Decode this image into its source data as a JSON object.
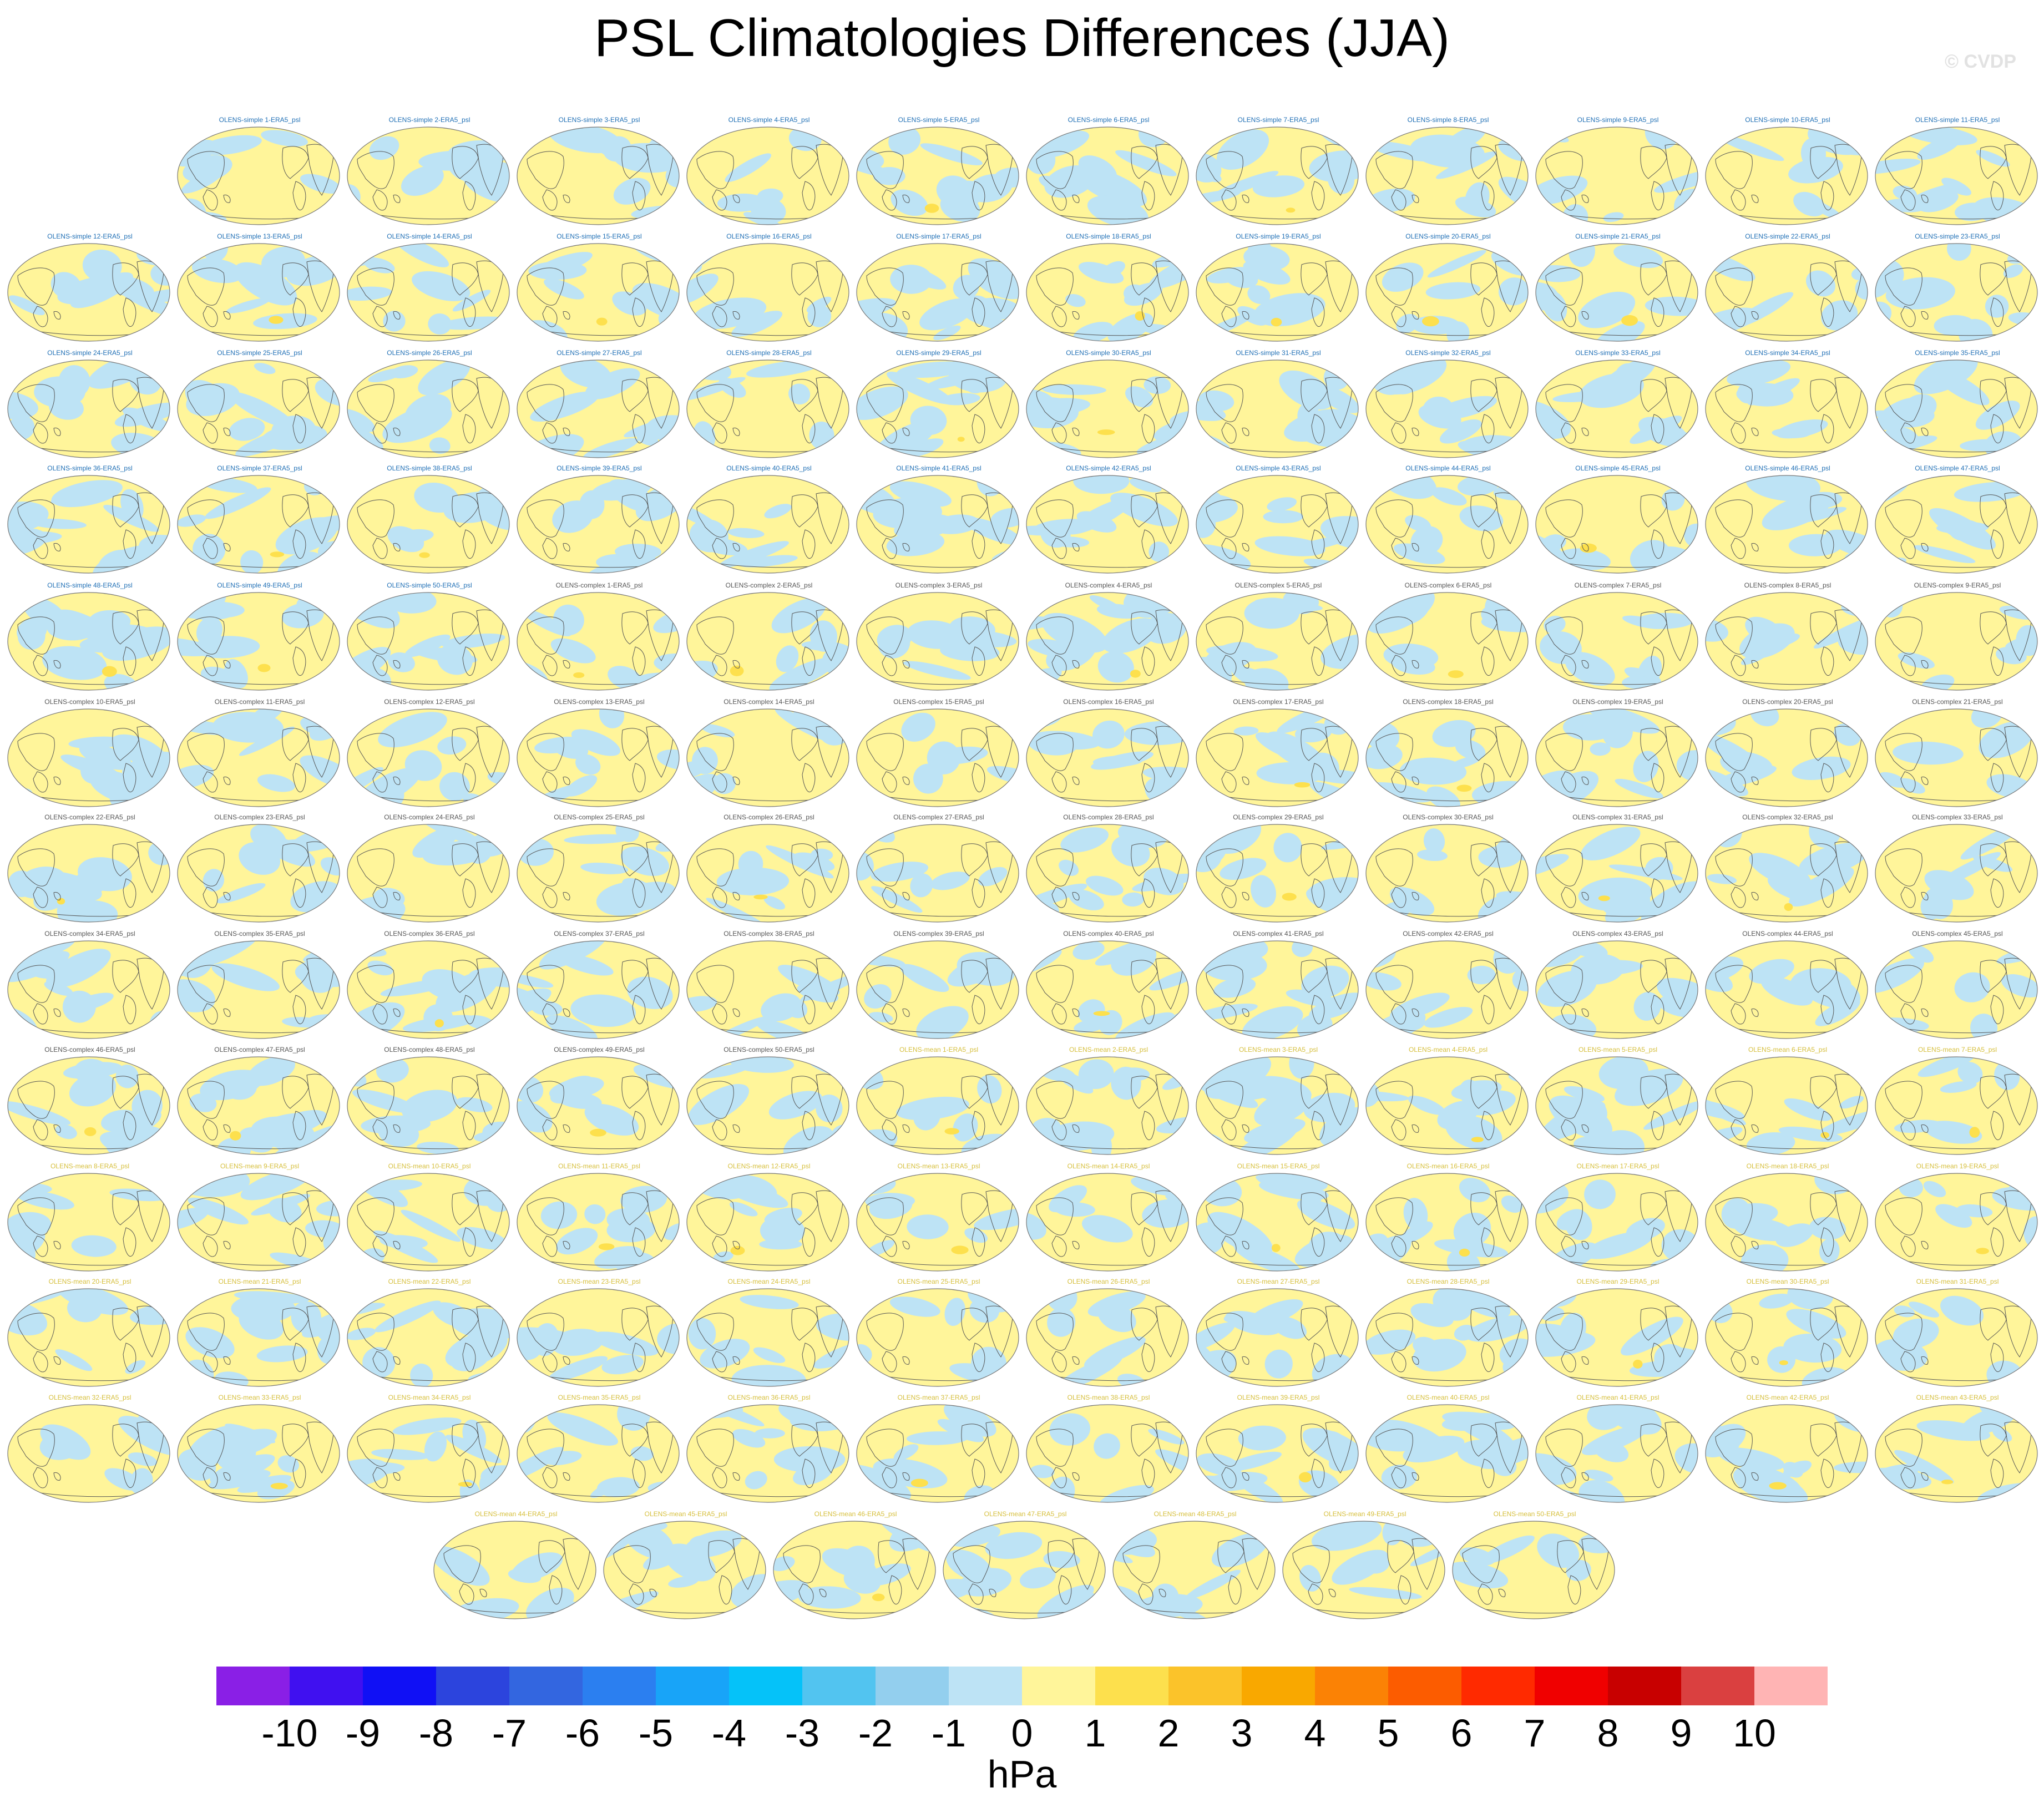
{
  "title": "PSL Climatologies Differences (JJA)",
  "watermark": "© CVDP",
  "label_colors": {
    "simple": "#1f6fb5",
    "complex": "#555555",
    "mean": "#d6bf3c"
  },
  "colors": {
    "positive": "#fff59a",
    "negative": "#bde3f5",
    "strong_positive": "#fde04d",
    "strong_negative": "#7fc6ee",
    "coast": "#555555",
    "outline": "#777777"
  },
  "chart_data": {
    "type": "heatmap",
    "title": "PSL Climatologies Differences (JJA)",
    "projection": "Robinson (global map panels)",
    "panels": [
      "OLENS-simple 1-ERA5_psl",
      "OLENS-simple 2-ERA5_psl",
      "OLENS-simple 3-ERA5_psl",
      "OLENS-simple 4-ERA5_psl",
      "OLENS-simple 5-ERA5_psl",
      "OLENS-simple 6-ERA5_psl",
      "OLENS-simple 7-ERA5_psl",
      "OLENS-simple 8-ERA5_psl",
      "OLENS-simple 9-ERA5_psl",
      "OLENS-simple 10-ERA5_psl",
      "OLENS-simple 11-ERA5_psl",
      "OLENS-simple 12-ERA5_psl",
      "OLENS-simple 13-ERA5_psl",
      "OLENS-simple 14-ERA5_psl",
      "OLENS-simple 15-ERA5_psl",
      "OLENS-simple 16-ERA5_psl",
      "OLENS-simple 17-ERA5_psl",
      "OLENS-simple 18-ERA5_psl",
      "OLENS-simple 19-ERA5_psl",
      "OLENS-simple 20-ERA5_psl",
      "OLENS-simple 21-ERA5_psl",
      "OLENS-simple 22-ERA5_psl",
      "OLENS-simple 23-ERA5_psl",
      "OLENS-simple 24-ERA5_psl",
      "OLENS-simple 25-ERA5_psl",
      "OLENS-simple 26-ERA5_psl",
      "OLENS-simple 27-ERA5_psl",
      "OLENS-simple 28-ERA5_psl",
      "OLENS-simple 29-ERA5_psl",
      "OLENS-simple 30-ERA5_psl",
      "OLENS-simple 31-ERA5_psl",
      "OLENS-simple 32-ERA5_psl",
      "OLENS-simple 33-ERA5_psl",
      "OLENS-simple 34-ERA5_psl",
      "OLENS-simple 35-ERA5_psl",
      "OLENS-simple 36-ERA5_psl",
      "OLENS-simple 37-ERA5_psl",
      "OLENS-simple 38-ERA5_psl",
      "OLENS-simple 39-ERA5_psl",
      "OLENS-simple 40-ERA5_psl",
      "OLENS-simple 41-ERA5_psl",
      "OLENS-simple 42-ERA5_psl",
      "OLENS-simple 43-ERA5_psl",
      "OLENS-simple 44-ERA5_psl",
      "OLENS-simple 45-ERA5_psl",
      "OLENS-simple 46-ERA5_psl",
      "OLENS-simple 47-ERA5_psl",
      "OLENS-simple 48-ERA5_psl",
      "OLENS-simple 49-ERA5_psl",
      "OLENS-simple 50-ERA5_psl",
      "OLENS-complex 1-ERA5_psl",
      "OLENS-complex 2-ERA5_psl",
      "OLENS-complex 3-ERA5_psl",
      "OLENS-complex 4-ERA5_psl",
      "OLENS-complex 5-ERA5_psl",
      "OLENS-complex 6-ERA5_psl",
      "OLENS-complex 7-ERA5_psl",
      "OLENS-complex 8-ERA5_psl",
      "OLENS-complex 9-ERA5_psl",
      "OLENS-complex 10-ERA5_psl",
      "OLENS-complex 11-ERA5_psl",
      "OLENS-complex 12-ERA5_psl",
      "OLENS-complex 13-ERA5_psl",
      "OLENS-complex 14-ERA5_psl",
      "OLENS-complex 15-ERA5_psl",
      "OLENS-complex 16-ERA5_psl",
      "OLENS-complex 17-ERA5_psl",
      "OLENS-complex 18-ERA5_psl",
      "OLENS-complex 19-ERA5_psl",
      "OLENS-complex 20-ERA5_psl",
      "OLENS-complex 21-ERA5_psl",
      "OLENS-complex 22-ERA5_psl",
      "OLENS-complex 23-ERA5_psl",
      "OLENS-complex 24-ERA5_psl",
      "OLENS-complex 25-ERA5_psl",
      "OLENS-complex 26-ERA5_psl",
      "OLENS-complex 27-ERA5_psl",
      "OLENS-complex 28-ERA5_psl",
      "OLENS-complex 29-ERA5_psl",
      "OLENS-complex 30-ERA5_psl",
      "OLENS-complex 31-ERA5_psl",
      "OLENS-complex 32-ERA5_psl",
      "OLENS-complex 33-ERA5_psl",
      "OLENS-complex 34-ERA5_psl",
      "OLENS-complex 35-ERA5_psl",
      "OLENS-complex 36-ERA5_psl",
      "OLENS-complex 37-ERA5_psl",
      "OLENS-complex 38-ERA5_psl",
      "OLENS-complex 39-ERA5_psl",
      "OLENS-complex 40-ERA5_psl",
      "OLENS-complex 41-ERA5_psl",
      "OLENS-complex 42-ERA5_psl",
      "OLENS-complex 43-ERA5_psl",
      "OLENS-complex 44-ERA5_psl",
      "OLENS-complex 45-ERA5_psl",
      "OLENS-complex 46-ERA5_psl",
      "OLENS-complex 47-ERA5_psl",
      "OLENS-complex 48-ERA5_psl",
      "OLENS-complex 49-ERA5_psl",
      "OLENS-complex 50-ERA5_psl",
      "OLENS-mean 1-ERA5_psl",
      "OLENS-mean 2-ERA5_psl",
      "OLENS-mean 3-ERA5_psl",
      "OLENS-mean 4-ERA5_psl",
      "OLENS-mean 5-ERA5_psl",
      "OLENS-mean 6-ERA5_psl",
      "OLENS-mean 7-ERA5_psl",
      "OLENS-mean 8-ERA5_psl",
      "OLENS-mean 9-ERA5_psl",
      "OLENS-mean 10-ERA5_psl",
      "OLENS-mean 11-ERA5_psl",
      "OLENS-mean 12-ERA5_psl",
      "OLENS-mean 13-ERA5_psl",
      "OLENS-mean 14-ERA5_psl",
      "OLENS-mean 15-ERA5_psl",
      "OLENS-mean 16-ERA5_psl",
      "OLENS-mean 17-ERA5_psl",
      "OLENS-mean 18-ERA5_psl",
      "OLENS-mean 19-ERA5_psl",
      "OLENS-mean 20-ERA5_psl",
      "OLENS-mean 21-ERA5_psl",
      "OLENS-mean 22-ERA5_psl",
      "OLENS-mean 23-ERA5_psl",
      "OLENS-mean 24-ERA5_psl",
      "OLENS-mean 25-ERA5_psl",
      "OLENS-mean 26-ERA5_psl",
      "OLENS-mean 27-ERA5_psl",
      "OLENS-mean 28-ERA5_psl",
      "OLENS-mean 29-ERA5_psl",
      "OLENS-mean 30-ERA5_psl",
      "OLENS-mean 31-ERA5_psl",
      "OLENS-mean 32-ERA5_psl",
      "OLENS-mean 33-ERA5_psl",
      "OLENS-mean 34-ERA5_psl",
      "OLENS-mean 35-ERA5_psl",
      "OLENS-mean 36-ERA5_psl",
      "OLENS-mean 37-ERA5_psl",
      "OLENS-mean 38-ERA5_psl",
      "OLENS-mean 39-ERA5_psl",
      "OLENS-mean 40-ERA5_psl",
      "OLENS-mean 41-ERA5_psl",
      "OLENS-mean 42-ERA5_psl",
      "OLENS-mean 43-ERA5_psl",
      "OLENS-mean 44-ERA5_psl",
      "OLENS-mean 45-ERA5_psl",
      "OLENS-mean 46-ERA5_psl",
      "OLENS-mean 47-ERA5_psl",
      "OLENS-mean 48-ERA5_psl",
      "OLENS-mean 49-ERA5_psl",
      "OLENS-mean 50-ERA5_psl"
    ],
    "colorbar": {
      "units": "hPa",
      "tick_labels": [
        "-10",
        "-9",
        "-8",
        "-7",
        "-6",
        "-5",
        "-4",
        "-3",
        "-2",
        "-1",
        "0",
        "1",
        "2",
        "3",
        "4",
        "5",
        "6",
        "7",
        "8",
        "9",
        "10"
      ],
      "colors": [
        "#8a1fe6",
        "#4010f0",
        "#1010f5",
        "#2c44dd",
        "#3366e0",
        "#2b7ff0",
        "#18a4f8",
        "#05c2f9",
        "#52c4f0",
        "#93cfee",
        "#bde3f5",
        "#fff59a",
        "#fde04d",
        "#fbc32a",
        "#f9a800",
        "#fb8205",
        "#fc5c00",
        "#ff2a00",
        "#f00000",
        "#c80000",
        "#da4040",
        "#ffb4b4"
      ]
    }
  }
}
